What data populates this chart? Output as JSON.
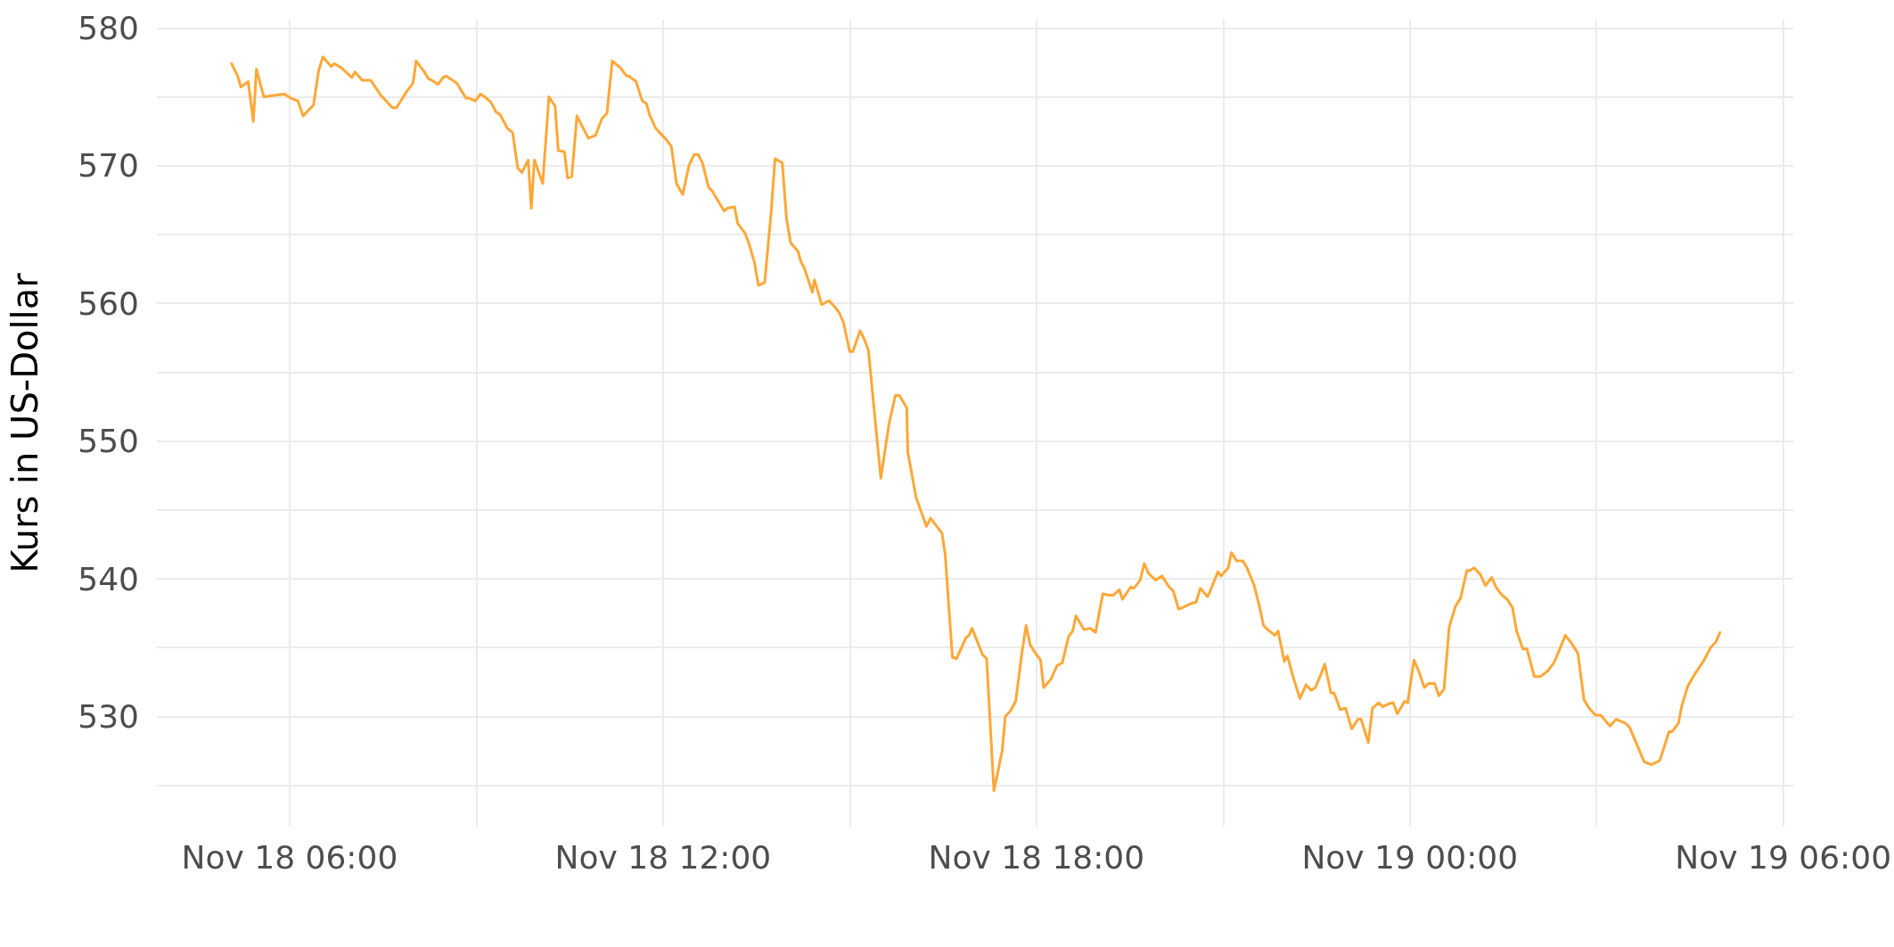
{
  "chart_data": {
    "type": "line",
    "ylabel": "Kurs in US-Dollar",
    "x": [
      "--11-18T05:04",
      "--11-18T05:10",
      "--11-18T05:13",
      "--11-18T05:20",
      "--11-18T05:25",
      "--11-18T05:28",
      "--11-18T05:35",
      "--11-18T05:55",
      "--11-18T06:01",
      "--11-18T06:08",
      "--11-18T06:13",
      "--11-18T06:23",
      "--11-18T06:28",
      "--11-18T06:32",
      "--11-18T06:40",
      "--11-18T06:43",
      "--11-18T06:50",
      "--11-18T07:00",
      "--11-18T07:03",
      "--11-18T07:10",
      "--11-18T07:18",
      "--11-18T07:28",
      "--11-18T07:39",
      "--11-18T07:43",
      "--11-18T07:53",
      "--11-18T07:59",
      "--11-18T08:02",
      "--11-18T08:09",
      "--11-18T08:14",
      "--11-18T08:17",
      "--11-18T08:23",
      "--11-18T08:28",
      "--11-18T08:31",
      "--11-18T08:41",
      "--11-18T08:50",
      "--11-18T08:53",
      "--11-18T08:59",
      "--11-18T09:04",
      "--11-18T09:08",
      "--11-18T09:14",
      "--11-18T09:19",
      "--11-18T09:23",
      "--11-18T09:30",
      "--11-18T09:35",
      "--11-18T09:40",
      "--11-18T09:44",
      "--11-18T09:50",
      "--11-18T09:53",
      "--11-18T09:56",
      "--11-18T10:04",
      "--11-18T10:10",
      "--11-18T10:16",
      "--11-18T10:19",
      "--11-18T10:25",
      "--11-18T10:28",
      "--11-18T10:32",
      "--11-18T10:37",
      "--11-18T10:48",
      "--11-18T10:55",
      "--11-18T11:01",
      "--11-18T11:06",
      "--11-18T11:11",
      "--11-18T11:19",
      "--11-18T11:25",
      "--11-18T11:27",
      "--11-18T11:34",
      "--11-18T11:40",
      "--11-18T11:44",
      "--11-18T11:47",
      "--11-18T11:53",
      "--11-18T12:03",
      "--11-18T12:08",
      "--11-18T12:13",
      "--11-18T12:19",
      "--11-18T12:25",
      "--11-18T12:30",
      "--11-18T12:34",
      "--11-18T12:38",
      "--11-18T12:44",
      "--11-18T12:47",
      "--11-18T12:59",
      "--11-18T13:02",
      "--11-18T13:09",
      "--11-18T13:12",
      "--11-18T13:19",
      "--11-18T13:23",
      "--11-18T13:28",
      "--11-18T13:32",
      "--11-18T13:38",
      "--11-18T13:44",
      "--11-18T13:48",
      "--11-18T13:55",
      "--11-18T13:59",
      "--11-18T14:03",
      "--11-18T14:10",
      "--11-18T14:13",
      "--11-18T14:16",
      "--11-18T14:24",
      "--11-18T14:26",
      "--11-18T14:33",
      "--11-18T14:40",
      "--11-18T14:46",
      "--11-18T14:50",
      "--11-18T14:54",
      "--11-18T15:00",
      "--11-18T15:03",
      "--11-18T15:10",
      "--11-18T15:14",
      "--11-18T15:18",
      "--11-18T15:22",
      "--11-18T15:30",
      "--11-18T15:38",
      "--11-18T15:44",
      "--11-18T15:48",
      "--11-18T15:55",
      "--11-18T15:56",
      "--11-18T16:04",
      "--11-18T16:14",
      "--11-18T16:18",
      "--11-18T16:29",
      "--11-18T16:32",
      "--11-18T16:39",
      "--11-18T16:43",
      "--11-18T16:52",
      "--11-18T16:55",
      "--11-18T16:58",
      "--11-18T17:08",
      "--11-18T17:12",
      "--11-18T17:19",
      "--11-18T17:27",
      "--11-18T17:30",
      "--11-18T17:35",
      "--11-18T17:40",
      "--11-18T17:46",
      "--11-18T17:50",
      "--11-18T17:54",
      "--11-18T17:59",
      "--11-18T18:04",
      "--11-18T18:07",
      "--11-18T18:14",
      "--11-18T18:20",
      "--11-18T18:25",
      "--11-18T18:31",
      "--11-18T18:35",
      "--11-18T18:38",
      "--11-18T18:46",
      "--11-18T18:52",
      "--11-18T18:57",
      "--11-18T19:04",
      "--11-18T19:10",
      "--11-18T19:14",
      "--11-18T19:20",
      "--11-18T19:23",
      "--11-18T19:31",
      "--11-18T19:34",
      "--11-18T19:40",
      "--11-18T19:44",
      "--11-18T19:48",
      "--11-18T19:55",
      "--11-18T20:01",
      "--11-18T20:08",
      "--11-18T20:12",
      "--11-18T20:17",
      "--11-18T20:21",
      "--11-18T20:29",
      "--11-18T20:34",
      "--11-18T20:38",
      "--11-18T20:45",
      "--11-18T20:47",
      "--11-18T20:55",
      "--11-18T20:58",
      "--11-18T21:05",
      "--11-18T21:08",
      "--11-18T21:13",
      "--11-18T21:19",
      "--11-18T21:23",
      "--11-18T21:30",
      "--11-18T21:35",
      "--11-18T21:39",
      "--11-18T21:43",
      "--11-18T21:50",
      "--11-18T21:53",
      "--11-18T21:59",
      "--11-18T22:02",
      "--11-18T22:07",
      "--11-18T22:14",
      "--11-18T22:20",
      "--11-18T22:25",
      "--11-18T22:29",
      "--11-18T22:34",
      "--11-18T22:38",
      "--11-18T22:44",
      "--11-18T22:47",
      "--11-18T22:53",
      "--11-18T22:58",
      "--11-18T23:04",
      "--11-18T23:10",
      "--11-18T23:13",
      "--11-18T23:20",
      "--11-18T23:24",
      "--11-18T23:30",
      "--11-18T23:34",
      "--11-18T23:39",
      "--11-18T23:44",
      "--11-18T23:48",
      "--11-18T23:55",
      "--11-18T23:58",
      "--11-19T00:04",
      "--11-19T00:09",
      "--11-19T00:14",
      "--11-19T00:18",
      "--11-19T00:24",
      "--11-19T00:28",
      "--11-19T00:33",
      "--11-19T00:38",
      "--11-19T00:44",
      "--11-19T00:49",
      "--11-19T00:55",
      "--11-19T00:58",
      "--11-19T01:02",
      "--11-19T01:08",
      "--11-19T01:13",
      "--11-19T01:19",
      "--11-19T01:23",
      "--11-19T01:29",
      "--11-19T01:34",
      "--11-19T01:39",
      "--11-19T01:43",
      "--11-19T01:49",
      "--11-19T01:53",
      "--11-19T02:00",
      "--11-19T02:06",
      "--11-19T02:13",
      "--11-19T02:19",
      "--11-19T02:24",
      "--11-19T02:30",
      "--11-19T02:36",
      "--11-19T02:42",
      "--11-19T02:48",
      "--11-19T02:53",
      "--11-19T02:59",
      "--11-19T03:04",
      "--11-19T03:13",
      "--11-19T03:19",
      "--11-19T03:25",
      "--11-19T03:28",
      "--11-19T03:32",
      "--11-19T03:46",
      "--11-19T03:53",
      "--11-19T04:01",
      "--11-19T04:10",
      "--11-19T04:13",
      "--11-19T04:19",
      "--11-19T04:22",
      "--11-19T04:28",
      "--11-19T04:35",
      "--11-19T04:43",
      "--11-19T04:50",
      "--11-19T04:55",
      "--11-19T04:59"
    ],
    "series": [
      {
        "color": "#ffa737",
        "values": [
          577.4,
          576.5,
          575.7,
          576.1,
          573.2,
          577.0,
          575.0,
          575.2,
          574.9,
          574.7,
          573.6,
          574.4,
          576.9,
          577.9,
          577.2,
          577.4,
          577.1,
          576.4,
          576.8,
          576.2,
          576.2,
          575.1,
          574.2,
          574.2,
          575.4,
          576.0,
          577.6,
          576.9,
          576.3,
          576.2,
          575.9,
          576.4,
          576.5,
          576.0,
          574.9,
          574.9,
          574.7,
          575.2,
          575.0,
          574.6,
          573.9,
          573.7,
          572.7,
          572.4,
          569.8,
          569.5,
          570.4,
          566.9,
          570.4,
          568.7,
          575.0,
          574.3,
          571.1,
          571.0,
          569.1,
          569.2,
          573.6,
          572.0,
          572.2,
          573.4,
          573.8,
          577.6,
          577.1,
          576.5,
          576.5,
          576.1,
          574.7,
          574.5,
          573.7,
          572.7,
          571.9,
          571.4,
          568.7,
          567.9,
          570.0,
          570.8,
          570.8,
          570.2,
          568.4,
          568.2,
          566.7,
          566.9,
          567.0,
          565.8,
          565.1,
          564.3,
          563.0,
          561.3,
          561.5,
          566.4,
          570.5,
          570.2,
          566.2,
          564.4,
          563.8,
          563.0,
          562.6,
          560.8,
          561.7,
          559.9,
          560.2,
          559.7,
          559.3,
          558.6,
          556.5,
          556.5,
          558.0,
          557.4,
          556.6,
          553.5,
          547.3,
          551.3,
          553.3,
          553.3,
          552.4,
          549.2,
          545.9,
          543.8,
          544.4,
          543.3,
          541.8,
          534.3,
          534.2,
          535.7,
          535.9,
          536.4,
          534.5,
          534.2,
          524.6,
          527.5,
          530.0,
          530.4,
          531.1,
          534.6,
          536.6,
          535.2,
          534.6,
          534.1,
          532.1,
          532.7,
          533.7,
          533.9,
          535.8,
          536.2,
          537.3,
          536.3,
          536.4,
          536.1,
          538.9,
          538.8,
          538.8,
          539.2,
          538.5,
          539.4,
          539.3,
          539.9,
          541.1,
          540.4,
          539.9,
          540.2,
          539.4,
          539.1,
          537.8,
          537.9,
          538.2,
          538.3,
          539.3,
          538.7,
          539.0,
          540.5,
          540.2,
          540.8,
          541.9,
          541.3,
          541.3,
          540.8,
          539.5,
          538.0,
          536.6,
          536.3,
          535.9,
          536.2,
          534.0,
          534.4,
          533.0,
          531.3,
          532.3,
          531.9,
          532.1,
          533.0,
          533.8,
          531.7,
          531.7,
          530.5,
          530.6,
          529.1,
          529.8,
          529.8,
          528.1,
          530.6,
          531.0,
          530.7,
          530.9,
          531.0,
          530.2,
          531.1,
          531.0,
          534.1,
          533.2,
          532.1,
          532.4,
          532.4,
          531.5,
          532.0,
          536.5,
          538.0,
          538.6,
          540.6,
          540.6,
          540.8,
          540.3,
          539.5,
          540.1,
          539.4,
          538.8,
          538.5,
          537.9,
          536.2,
          534.9,
          534.9,
          532.9,
          532.9,
          533.3,
          533.9,
          534.8,
          535.9,
          535.3,
          534.6,
          531.2,
          530.6,
          530.1,
          530.1,
          529.3,
          529.8,
          529.6,
          529.5,
          529.2,
          526.7,
          526.5,
          526.8,
          528.9,
          528.9,
          529.5,
          530.7,
          532.2,
          533.1,
          534.0,
          535.0,
          535.4,
          536.1
        ]
      }
    ],
    "xlim": [
      "--11-18T03:52",
      "--11-19T06:10"
    ],
    "xticks": [
      {
        "value": "--11-18T06:00",
        "label": "Nov 18 06:00"
      },
      {
        "value": "--11-18T09:00",
        "label": null
      },
      {
        "value": "--11-18T12:00",
        "label": "Nov 18 12:00"
      },
      {
        "value": "--11-18T15:00",
        "label": null
      },
      {
        "value": "--11-18T18:00",
        "label": "Nov 18 18:00"
      },
      {
        "value": "--11-18T21:00",
        "label": null
      },
      {
        "value": "--11-19T00:00",
        "label": "Nov 19 00:00"
      },
      {
        "value": "--11-19T03:00",
        "label": null
      },
      {
        "value": "--11-19T06:00",
        "label": "Nov 19 06:00"
      }
    ],
    "ylim": [
      522.0,
      580.6
    ],
    "yticks": [
      {
        "value": 525,
        "label": null
      },
      530,
      {
        "value": 535,
        "label": null
      },
      540,
      {
        "value": 545,
        "label": null
      },
      550,
      {
        "value": 555,
        "label": null
      },
      560,
      {
        "value": 565,
        "label": null
      },
      570,
      {
        "value": 575,
        "label": null
      },
      580
    ],
    "grid": true,
    "marker": "none",
    "line_style": "solid"
  }
}
